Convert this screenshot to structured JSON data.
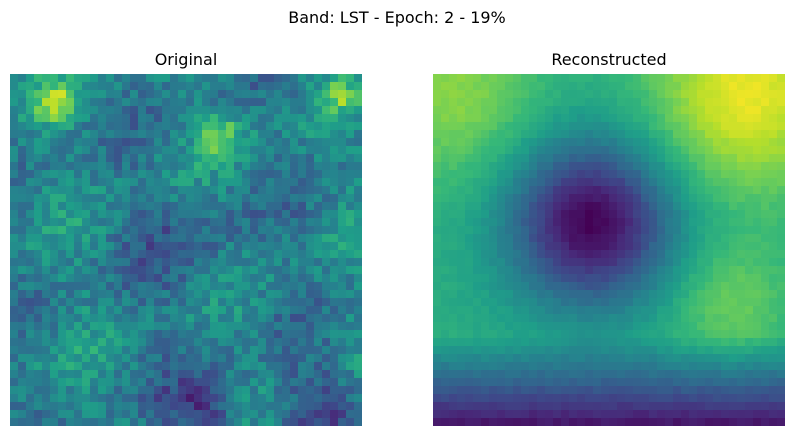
{
  "figure": {
    "suptitle": "Band: LST - Epoch: 2 - 19%"
  },
  "panels": [
    {
      "title": "Original",
      "image_description": "noisy viridis heatmap; mostly teal-green with scattered bright yellow-green speckles along the top, darker blue patches in the middle and bottom"
    },
    {
      "title": "Reconstructed",
      "image_description": "smooth viridis heatmap; bright yellow-green top, dark purple blob left-center, yellow-green lobe lower right, dark purple band along the bottom"
    }
  ],
  "colormap": {
    "name": "viridis",
    "stops": [
      "#440154",
      "#482878",
      "#3e4989",
      "#31688e",
      "#26828e",
      "#1f9e89",
      "#35b779",
      "#6ece58",
      "#b5de2b",
      "#fde725"
    ]
  }
}
